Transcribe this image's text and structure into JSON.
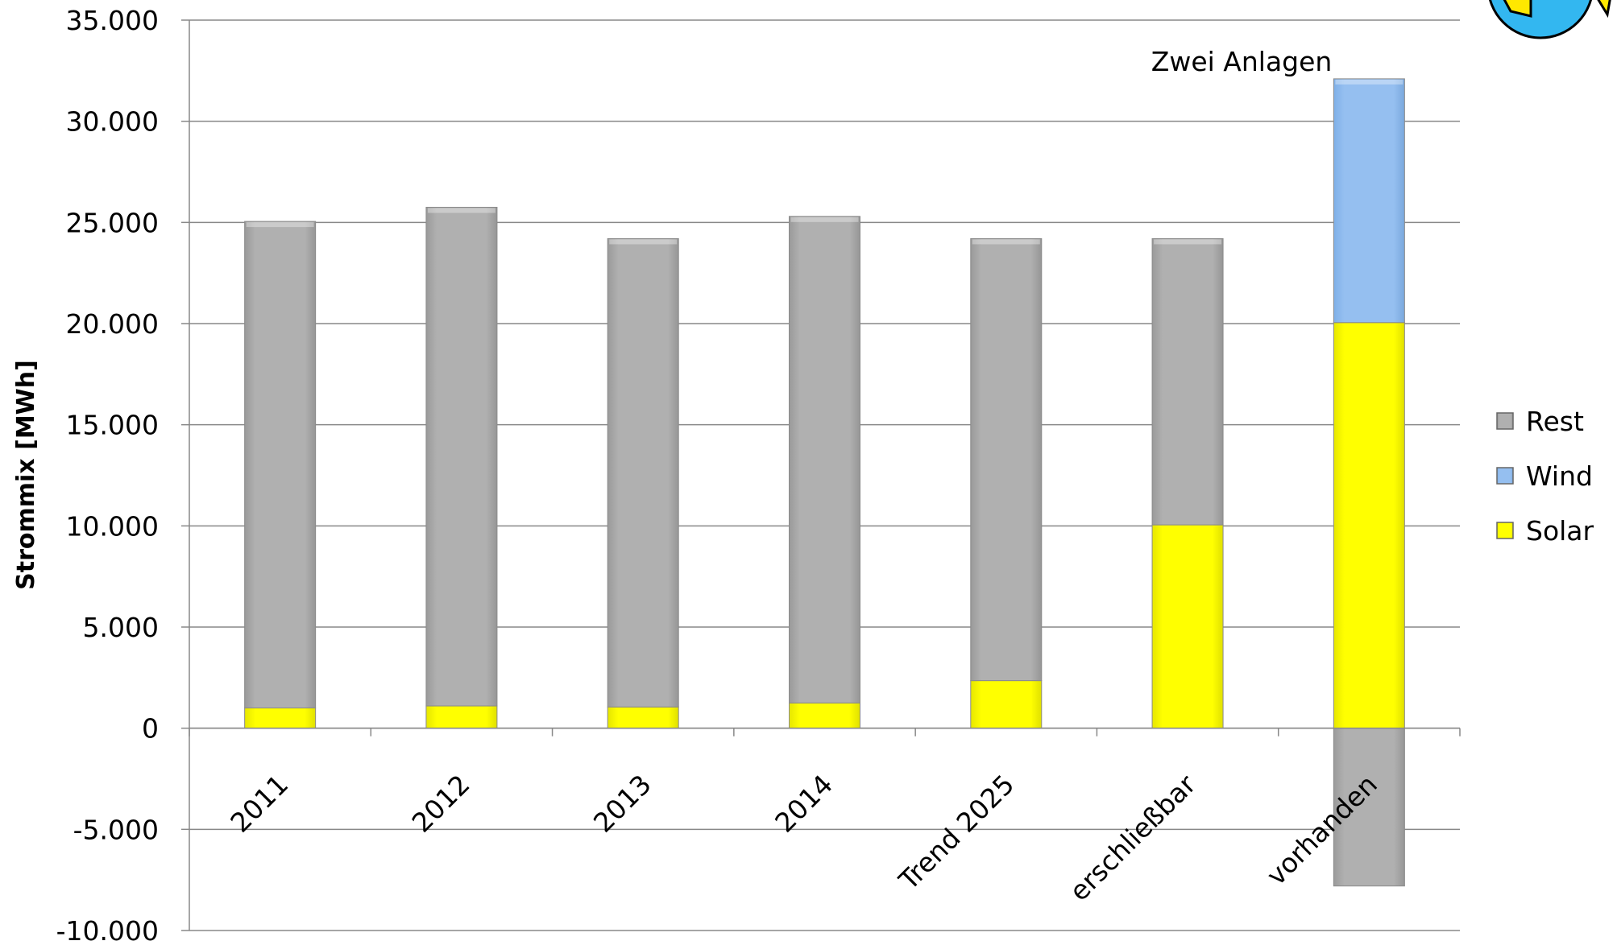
{
  "chart_data": {
    "type": "bar",
    "stacked": true,
    "title": "",
    "xlabel": "",
    "ylabel": "Strommix [MWh]",
    "ylim": [
      -10000,
      35000
    ],
    "y_ticks": [
      35000,
      30000,
      25000,
      20000,
      15000,
      10000,
      5000,
      0,
      -5000,
      -10000
    ],
    "y_tick_labels": [
      "35.000",
      "30.000",
      "25.000",
      "20.000",
      "15.000",
      "10.000",
      "5.000",
      "0",
      "-5.000",
      "-10.000"
    ],
    "grid": true,
    "legend_position": "right",
    "categories": [
      "2011",
      "2012",
      "2013",
      "2014",
      "Trend 2025",
      "erschließbar",
      "vorhanden"
    ],
    "series": [
      {
        "name": "Solar",
        "color": "#ffff00",
        "values": [
          1000,
          1100,
          1050,
          1250,
          2350,
          10050,
          20050
        ]
      },
      {
        "name": "Wind",
        "color": "#95bff0",
        "values": [
          0,
          0,
          0,
          0,
          0,
          0,
          12050
        ]
      },
      {
        "name": "Rest",
        "color": "#b0b0b0",
        "values": [
          24050,
          24650,
          23150,
          24050,
          21850,
          14150,
          -7800
        ]
      }
    ],
    "legend_order": [
      "Rest",
      "Wind",
      "Solar"
    ],
    "annotations": [
      {
        "text": "Zwei Anlagen",
        "category": "vorhanden"
      }
    ]
  }
}
